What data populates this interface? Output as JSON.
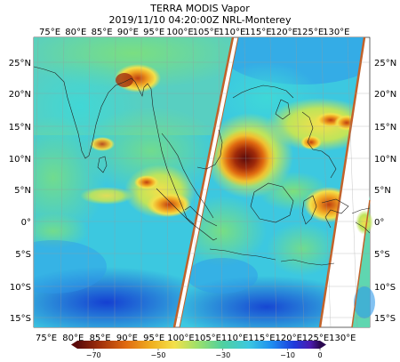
{
  "title": {
    "line1": "TERRA MODIS Vapor",
    "line2": "2019/11/10 04:20:00Z NRL-Monterey"
  },
  "axes": {
    "lon_top": [
      "75°E",
      "80°E",
      "85°E",
      "90°E",
      "95°E",
      "100°E",
      "105°E",
      "110°E",
      "115°E",
      "120°E",
      "125°E",
      "130°E"
    ],
    "lon_bottom": [
      "75°E",
      "80°E",
      "85°E",
      "90°E",
      "95°E",
      "100°E",
      "105°E",
      "110°E",
      "115°E",
      "120°E",
      "125°E",
      "130°E"
    ],
    "lat_left": [
      "25°N",
      "20°N",
      "15°N",
      "10°N",
      "5°N",
      "0°",
      "5°S",
      "10°S",
      "15°S"
    ],
    "lat_right": [
      "25°N",
      "20°N",
      "15°N",
      "10°N",
      "5°N",
      "0°",
      "5°S",
      "10°S",
      "15°S"
    ]
  },
  "colorbar": {
    "ticks": [
      "−70",
      "−50",
      "−30",
      "−10",
      "0"
    ],
    "stops": [
      {
        "v": -75,
        "color": "#5a0a0a"
      },
      {
        "v": -68,
        "color": "#a0300a"
      },
      {
        "v": -60,
        "color": "#e06a10"
      },
      {
        "v": -52,
        "color": "#f0b020"
      },
      {
        "v": -45,
        "color": "#f3e04a"
      },
      {
        "v": -38,
        "color": "#9ee06a"
      },
      {
        "v": -30,
        "color": "#4ed0a0"
      },
      {
        "v": -22,
        "color": "#3cc8e0"
      },
      {
        "v": -15,
        "color": "#1e8ef0"
      },
      {
        "v": -8,
        "color": "#1e3adc"
      },
      {
        "v": -3,
        "color": "#4a1ab0"
      },
      {
        "v": 0,
        "color": "#2a0850"
      }
    ]
  },
  "colors": {
    "swath_edge": "#c2622a",
    "coast": "#202020",
    "grid": "#9a9a9a"
  }
}
